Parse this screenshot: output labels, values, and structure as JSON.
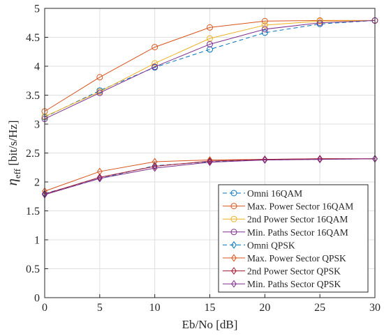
{
  "chart_data": {
    "type": "line",
    "title": "",
    "xlabel": "Eb/No [dB]",
    "ylabel": {
      "symbol": "η",
      "subscript": "eff",
      "unit": " [bit/s/Hz]"
    },
    "xlim": [
      0,
      30
    ],
    "ylim": [
      0,
      5
    ],
    "xticks": [
      "0",
      "5",
      "10",
      "15",
      "20",
      "25",
      "30"
    ],
    "yticks": [
      "0",
      "0.5",
      "1",
      "1.5",
      "2",
      "2.5",
      "3",
      "3.5",
      "4",
      "4.5",
      "5"
    ],
    "grid": true,
    "legend_position": "bottom-right",
    "x": [
      0,
      5,
      10,
      15,
      20,
      25,
      30
    ],
    "series": [
      {
        "name": "Omni 16QAM",
        "color": "#0072BD",
        "dash": true,
        "marker": "circle",
        "values": [
          3.12,
          3.58,
          3.98,
          4.29,
          4.58,
          4.73,
          4.79
        ]
      },
      {
        "name": "Max. Power Sector 16QAM",
        "color": "#D95319",
        "dash": false,
        "marker": "circle",
        "values": [
          3.22,
          3.81,
          4.33,
          4.67,
          4.78,
          4.79,
          4.79
        ]
      },
      {
        "name": "2nd Power Sector 16QAM",
        "color": "#EDB120",
        "dash": false,
        "marker": "circle",
        "values": [
          3.13,
          3.56,
          4.05,
          4.48,
          4.71,
          4.78,
          4.79
        ]
      },
      {
        "name": "Min. Paths Sector 16QAM",
        "color": "#7E2F8E",
        "dash": false,
        "marker": "circle",
        "values": [
          3.09,
          3.54,
          3.99,
          4.38,
          4.64,
          4.75,
          4.79
        ]
      },
      {
        "name": "Omni QPSK",
        "color": "#0072BD",
        "dash": true,
        "marker": "diamond",
        "values": [
          1.8,
          2.06,
          2.28,
          2.35,
          2.38,
          2.39,
          2.4
        ]
      },
      {
        "name": "Max. Power Sector QPSK",
        "color": "#D95319",
        "dash": false,
        "marker": "diamond",
        "values": [
          1.84,
          2.18,
          2.35,
          2.38,
          2.39,
          2.4,
          2.4
        ]
      },
      {
        "name": "2nd Power Sector QPSK",
        "color": "#A2142F",
        "dash": false,
        "marker": "diamond",
        "values": [
          1.79,
          2.08,
          2.27,
          2.36,
          2.39,
          2.4,
          2.4
        ]
      },
      {
        "name": "Min. Paths Sector QPSK",
        "color": "#7E2F8E",
        "dash": false,
        "marker": "diamond",
        "values": [
          1.78,
          2.06,
          2.24,
          2.34,
          2.38,
          2.39,
          2.4
        ]
      }
    ]
  }
}
